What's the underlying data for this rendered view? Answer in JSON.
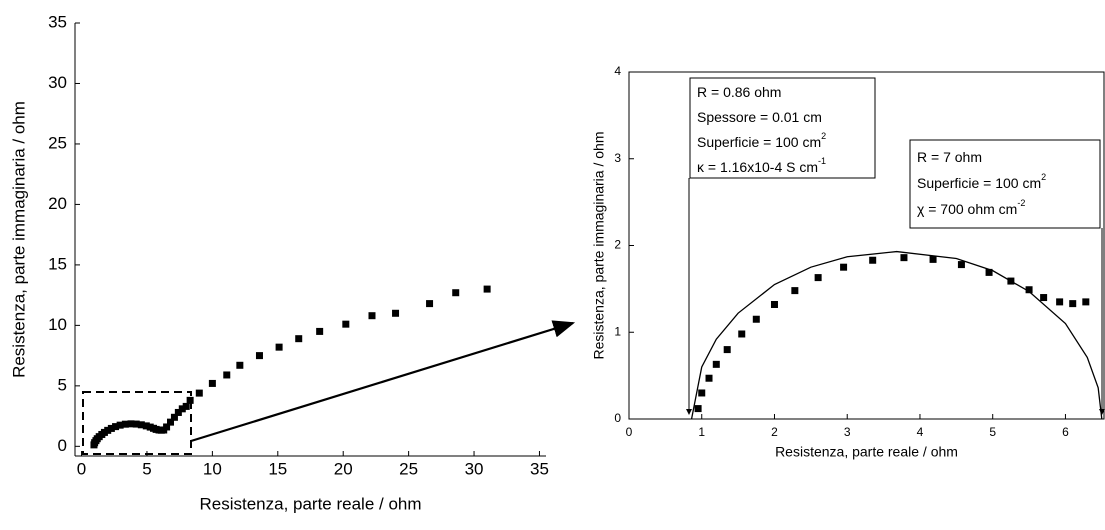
{
  "chart_data": [
    {
      "type": "scatter",
      "x_label": "Resistenza, parte reale / ohm",
      "y_label": "Resistenza, parte immaginaria / ohm",
      "xlim": [
        -0.5,
        35.5
      ],
      "ylim": [
        -0.8,
        35
      ],
      "xticks": [
        0,
        5,
        10,
        15,
        20,
        25,
        30,
        35
      ],
      "yticks": [
        0,
        5,
        10,
        15,
        20,
        25,
        30,
        35
      ],
      "series": [
        {
          "mode": "markers",
          "color": "#000000",
          "x": [
            0.95,
            1.0,
            1.1,
            1.2,
            1.35,
            1.55,
            1.75,
            2.0,
            2.28,
            2.6,
            2.95,
            3.35,
            3.78,
            4.18,
            4.57,
            4.95,
            5.25,
            5.5,
            5.7,
            5.92,
            6.1,
            6.28,
            6.5,
            6.8,
            7.1,
            7.4,
            7.7,
            8.0,
            8.3,
            9.0,
            10.0,
            11.1,
            12.1,
            13.6,
            15.1,
            16.6,
            18.2,
            20.2,
            22.2,
            24.0,
            26.6,
            28.6,
            31.0
          ],
          "values": [
            0.12,
            0.3,
            0.47,
            0.63,
            0.8,
            0.98,
            1.15,
            1.32,
            1.48,
            1.63,
            1.75,
            1.83,
            1.86,
            1.84,
            1.78,
            1.69,
            1.59,
            1.49,
            1.4,
            1.35,
            1.33,
            1.35,
            1.6,
            2.0,
            2.4,
            2.8,
            3.1,
            3.3,
            3.8,
            4.4,
            5.2,
            5.9,
            6.7,
            7.5,
            8.2,
            8.9,
            9.5,
            10.1,
            10.8,
            11.0,
            11.8,
            12.7,
            13.0
          ]
        }
      ]
    },
    {
      "type": "scatter",
      "x_label": "Resistenza, parte reale / ohm",
      "y_label": "Resistenza, parte immaginaria / ohm",
      "xlim": [
        0,
        6.53
      ],
      "ylim": [
        0,
        4
      ],
      "xticks": [
        0,
        1,
        2,
        3,
        4,
        5,
        6
      ],
      "yticks": [
        0,
        1,
        2,
        3,
        4
      ],
      "series": [
        {
          "mode": "markers",
          "color": "#000000",
          "x": [
            0.95,
            1.0,
            1.1,
            1.2,
            1.35,
            1.55,
            1.75,
            2.0,
            2.28,
            2.6,
            2.95,
            3.35,
            3.78,
            4.18,
            4.57,
            4.95,
            5.25,
            5.5,
            5.7,
            5.92,
            6.1,
            6.28
          ],
          "values": [
            0.12,
            0.3,
            0.47,
            0.63,
            0.8,
            0.98,
            1.15,
            1.32,
            1.48,
            1.63,
            1.75,
            1.83,
            1.86,
            1.84,
            1.78,
            1.69,
            1.59,
            1.49,
            1.4,
            1.35,
            1.33,
            1.35
          ]
        },
        {
          "mode": "line",
          "color": "#000000",
          "x": [
            0.86,
            1.0,
            1.2,
            1.5,
            2.0,
            2.5,
            3.0,
            3.68,
            4.5,
            5.0,
            5.5,
            6.0,
            6.3,
            6.45,
            6.5
          ],
          "values": [
            0,
            0.6,
            0.92,
            1.22,
            1.55,
            1.75,
            1.87,
            1.93,
            1.85,
            1.71,
            1.47,
            1.1,
            0.71,
            0.36,
            0
          ]
        }
      ],
      "annotations": [
        {
          "text": "R = 0.86 ohm"
        },
        {
          "text": "Spessore = 0.01 cm"
        },
        {
          "text": "Superficie = 100 cm",
          "sup": "2"
        },
        {
          "text": "κ = 1.16x10-4 S cm",
          "sup": "-1"
        },
        {
          "text": "R = 7 ohm"
        },
        {
          "text": "Superficie = 100 cm",
          "sup": "2"
        },
        {
          "text": "χ = 700 ohm cm",
          "sup": "-2"
        }
      ]
    }
  ]
}
